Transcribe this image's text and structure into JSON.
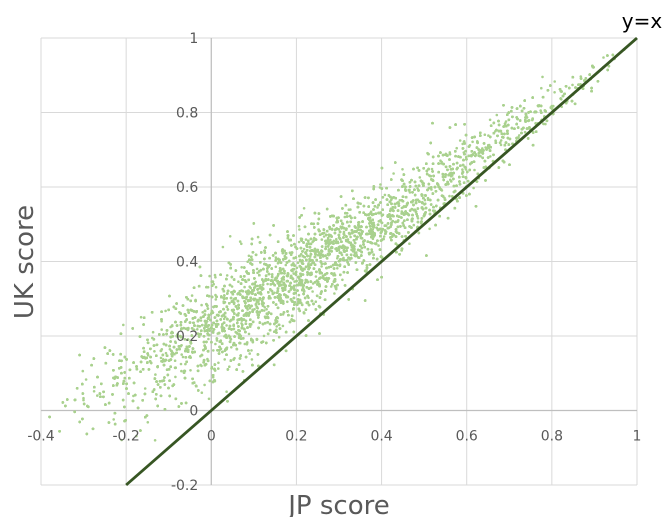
{
  "chart_data": {
    "type": "scatter",
    "xlabel": "JP score",
    "ylabel": "UK score",
    "xlim": [
      -0.4,
      1
    ],
    "ylim": [
      -0.2,
      1
    ],
    "x_ticks": [
      "-0.4",
      "-0.2",
      "0",
      "0.2",
      "0.4",
      "0.6",
      "0.8",
      "1"
    ],
    "y_ticks": [
      "-0.2",
      "0",
      "0.2",
      "0.4",
      "0.6",
      "0.8",
      "1"
    ],
    "x_tick_values": [
      -0.4,
      -0.2,
      0,
      0.2,
      0.4,
      0.6,
      0.8,
      1
    ],
    "y_tick_values": [
      -0.2,
      0,
      0.2,
      0.4,
      0.6,
      0.8,
      1
    ],
    "grid": true,
    "reference_line": {
      "label": "y=x",
      "from": [
        -0.2,
        -0.2
      ],
      "to": [
        1,
        1
      ],
      "color": "#375623"
    },
    "series": [
      {
        "color": "#a9d18e",
        "density_profile": [
          {
            "x": -0.38,
            "y_center": 0.01,
            "spread": 0.03,
            "weight": 0.2
          },
          {
            "x": -0.3,
            "y_center": 0.05,
            "spread": 0.05,
            "weight": 0.5
          },
          {
            "x": -0.2,
            "y_center": 0.1,
            "spread": 0.07,
            "weight": 1.2
          },
          {
            "x": -0.1,
            "y_center": 0.16,
            "spread": 0.075,
            "weight": 2.5
          },
          {
            "x": 0.0,
            "y_center": 0.22,
            "spread": 0.075,
            "weight": 4.0
          },
          {
            "x": 0.1,
            "y_center": 0.29,
            "spread": 0.07,
            "weight": 5.0
          },
          {
            "x": 0.2,
            "y_center": 0.36,
            "spread": 0.065,
            "weight": 5.0
          },
          {
            "x": 0.3,
            "y_center": 0.43,
            "spread": 0.06,
            "weight": 4.5
          },
          {
            "x": 0.4,
            "y_center": 0.5,
            "spread": 0.055,
            "weight": 3.8
          },
          {
            "x": 0.5,
            "y_center": 0.58,
            "spread": 0.05,
            "weight": 3.0
          },
          {
            "x": 0.6,
            "y_center": 0.66,
            "spread": 0.045,
            "weight": 2.2
          },
          {
            "x": 0.7,
            "y_center": 0.74,
            "spread": 0.04,
            "weight": 1.5
          },
          {
            "x": 0.8,
            "y_center": 0.82,
            "spread": 0.035,
            "weight": 0.8
          },
          {
            "x": 0.9,
            "y_center": 0.9,
            "spread": 0.025,
            "weight": 0.3
          },
          {
            "x": 0.98,
            "y_center": 0.97,
            "spread": 0.015,
            "weight": 0.1
          }
        ]
      }
    ]
  }
}
